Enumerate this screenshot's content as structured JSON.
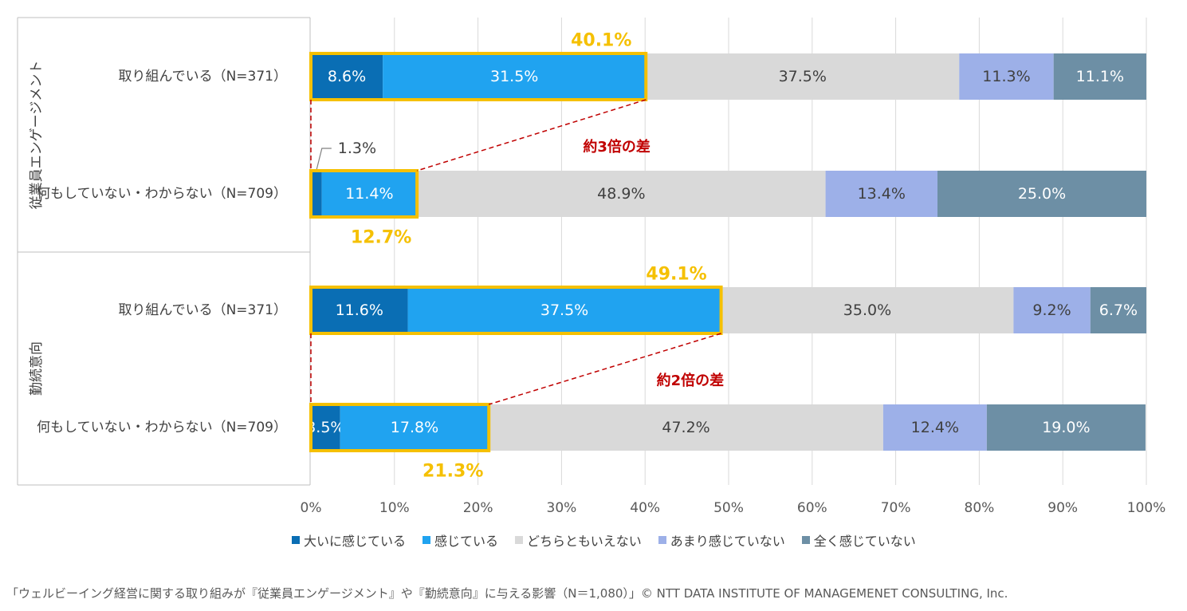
{
  "chart_data": {
    "type": "bar",
    "orientation": "horizontal",
    "stacked": true,
    "xlim": [
      0,
      100
    ],
    "x_ticks": [
      "0%",
      "10%",
      "20%",
      "30%",
      "40%",
      "50%",
      "60%",
      "70%",
      "80%",
      "90%",
      "100%"
    ],
    "grid": true,
    "legend_position": "bottom",
    "colors": [
      "#0a6eb4",
      "#20a3f0",
      "#d9d9d9",
      "#9db0e8",
      "#6d8fa5"
    ],
    "label_colors": [
      "#ffffff",
      "#ffffff",
      "#404040",
      "#404040",
      "#ffffff"
    ],
    "highlight_color": "#f5c000",
    "annotation_color": "#c00000",
    "groups": [
      {
        "label": "従業員エンゲージメント",
        "bars": [
          {
            "label": "取り組んでいる（N=371）",
            "values": [
              8.6,
              31.5,
              37.5,
              11.3,
              11.1
            ],
            "value_labels": [
              "8.6%",
              "31.5%",
              "37.5%",
              "11.3%",
              "11.1%"
            ],
            "highlight": "40.1%"
          },
          {
            "label": "何もしていない・わからない（N=709）",
            "values": [
              1.3,
              11.4,
              48.9,
              13.4,
              25.0
            ],
            "value_labels": [
              "1.3%",
              "11.4%",
              "48.9%",
              "13.4%",
              "25.0%"
            ],
            "highlight": "12.7%"
          }
        ],
        "annotation": "約3倍の差"
      },
      {
        "label": "勤続意向",
        "bars": [
          {
            "label": "取り組んでいる（N=371）",
            "values": [
              11.6,
              37.5,
              35.0,
              9.2,
              6.7
            ],
            "value_labels": [
              "11.6%",
              "37.5%",
              "35.0%",
              "9.2%",
              "6.7%"
            ],
            "highlight": "49.1%"
          },
          {
            "label": "何もしていない・わからない（N=709）",
            "values": [
              3.5,
              17.8,
              47.2,
              12.4,
              19.0
            ],
            "value_labels": [
              "3.5%",
              "17.8%",
              "47.2%",
              "12.4%",
              "19.0%"
            ],
            "highlight": "21.3%"
          }
        ],
        "annotation": "約2倍の差"
      }
    ],
    "series": [
      {
        "name": "大いに感じている"
      },
      {
        "name": "感じている"
      },
      {
        "name": "どちらともいえない"
      },
      {
        "name": "あまり感じていない"
      },
      {
        "name": "全く感じていない"
      }
    ],
    "caption": "「ウェルビーイング経営に関する取り組みが『従業員エンゲージメント』や『勤続意向』に与える影響（N＝1,080）」© NTT DATA INSTITUTE OF MANAGEMENET CONSULTING, Inc."
  }
}
